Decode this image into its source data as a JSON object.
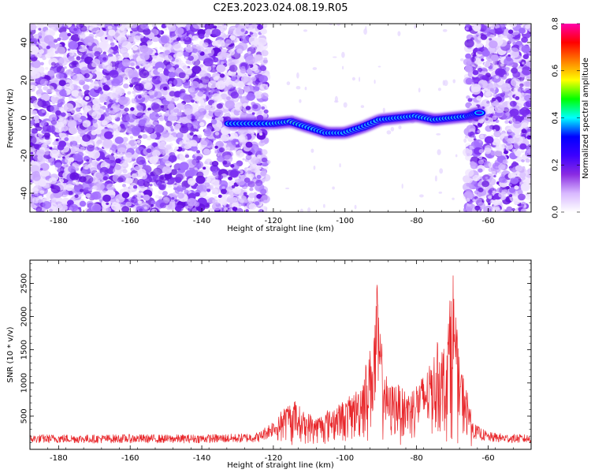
{
  "title": "C2E3.2023.024.08.19.R05",
  "chart_data": [
    {
      "type": "heatmap",
      "title": "",
      "xlabel": "Height of straight line (km)",
      "ylabel": "Frequency (Hz)",
      "xlim": [
        -188,
        -48
      ],
      "ylim": [
        -50,
        50
      ],
      "x_ticks": [
        "-180",
        "-160",
        "-140",
        "-120",
        "-100",
        "-80",
        "-60"
      ],
      "y_ticks": [
        "-40",
        "-20",
        "0",
        "20",
        "40"
      ],
      "x_tick_values": [
        -180,
        -160,
        -140,
        -120,
        -100,
        -80,
        -60
      ],
      "y_tick_values": [
        -40,
        -20,
        0,
        20,
        40
      ],
      "colorbar": {
        "label": "Normalized spectral amplitude",
        "range": [
          0.0,
          0.8
        ],
        "ticks": [
          "0.0",
          "0.2",
          "0.4",
          "0.6",
          "0.8"
        ],
        "tick_values": [
          0.0,
          0.2,
          0.4,
          0.6,
          0.8
        ],
        "colors": [
          "#ffffff",
          "#d8b8ff",
          "#8a2be2",
          "#3c00ff",
          "#0000ff",
          "#00ffff",
          "#00ff00",
          "#ffff00",
          "#ff8000",
          "#ff0000",
          "#ff00aa"
        ]
      },
      "noise_regions": [
        {
          "x": [
            -188,
            -122
          ],
          "level": 0.12
        },
        {
          "x": [
            -66,
            -48
          ],
          "level": 0.12
        }
      ],
      "signal_ridge": {
        "x": [
          -132,
          -126,
          -120,
          -115,
          -110,
          -105,
          -100,
          -95,
          -90,
          -85,
          -80,
          -75,
          -70,
          -65,
          -62
        ],
        "frequency": [
          -3,
          -3,
          -3,
          -2,
          -5,
          -8,
          -8,
          -5,
          -1,
          0,
          1,
          -1,
          0,
          1,
          3
        ],
        "amplitude": [
          0.35,
          0.3,
          0.55,
          0.75,
          0.5,
          0.45,
          0.55,
          0.4,
          0.5,
          0.45,
          0.55,
          0.6,
          0.7,
          0.4,
          0.3
        ]
      }
    },
    {
      "type": "line",
      "title": "",
      "xlabel": "Height of straight line (km)",
      "ylabel": "SNR (10 * v/v)",
      "xlim": [
        -188,
        -48
      ],
      "ylim": [
        0,
        2850
      ],
      "x_ticks": [
        "-180",
        "-160",
        "-140",
        "-120",
        "-100",
        "-80",
        "-60"
      ],
      "y_ticks": [
        "500",
        "1000",
        "1500",
        "2000",
        "2500"
      ],
      "x_tick_values": [
        -180,
        -160,
        -140,
        -120,
        -100,
        -80,
        -60
      ],
      "y_tick_values": [
        500,
        1000,
        1500,
        2000,
        2500
      ],
      "color": "#e8262a",
      "series": [
        {
          "x": [
            -188,
            -180,
            -170,
            -160,
            -150,
            -140,
            -130,
            -124,
            -120,
            -117,
            -114,
            -112,
            -110,
            -108,
            -105,
            -102,
            -100,
            -98,
            -96,
            -94,
            -92,
            -91,
            -90,
            -88,
            -86,
            -84,
            -82,
            -80,
            -78,
            -76,
            -74,
            -72,
            -71,
            -70,
            -69,
            -68,
            -66,
            -64,
            -60,
            -55,
            -48
          ],
          "values": [
            170,
            175,
            170,
            175,
            170,
            175,
            180,
            200,
            350,
            620,
            700,
            550,
            500,
            450,
            550,
            650,
            700,
            800,
            900,
            1300,
            1700,
            2480,
            1700,
            900,
            1000,
            900,
            850,
            1000,
            1100,
            1300,
            1600,
            1500,
            2000,
            2850,
            2000,
            1300,
            900,
            300,
            200,
            180,
            170
          ]
        }
      ]
    }
  ]
}
